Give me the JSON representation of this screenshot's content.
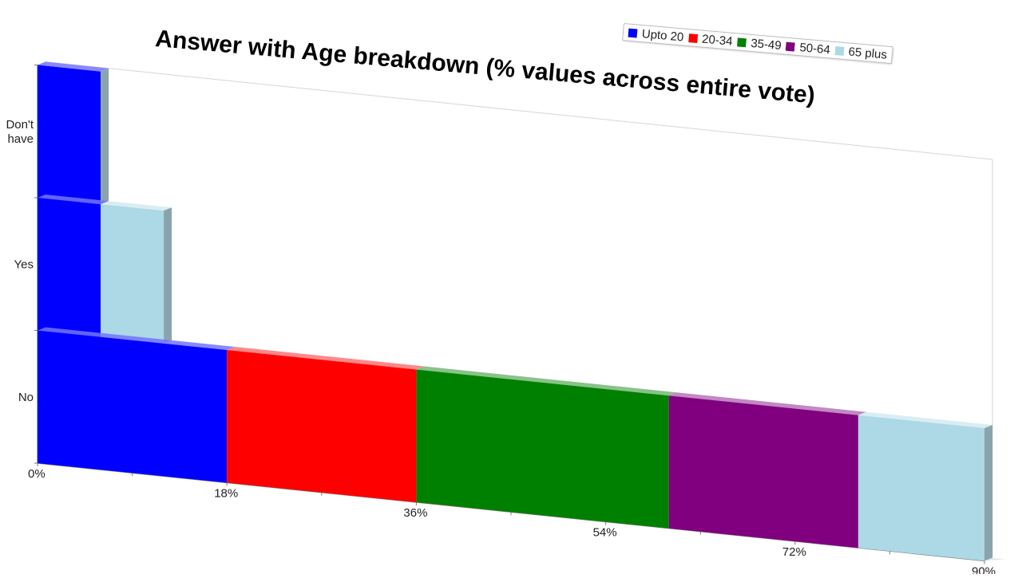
{
  "chart_data": {
    "type": "bar",
    "orientation": "horizontal",
    "stacked": true,
    "title": "Answer with Age breakdown (% values across entire vote)",
    "categories": [
      "Don't have",
      "Yes",
      "No"
    ],
    "category_lines": [
      [
        "Don't",
        "have"
      ],
      [
        "Yes"
      ],
      [
        "No"
      ]
    ],
    "series": [
      {
        "name": "Upto 20",
        "color": "#0000ff",
        "values": [
          6,
          6,
          18
        ]
      },
      {
        "name": "20-34",
        "color": "#ff0000",
        "values": [
          0,
          0,
          18
        ]
      },
      {
        "name": "35-49",
        "color": "#008000",
        "values": [
          0,
          0,
          24
        ]
      },
      {
        "name": "50-64",
        "color": "#800080",
        "values": [
          0,
          0,
          18
        ]
      },
      {
        "name": "65 plus",
        "color": "#add8e6",
        "values": [
          0,
          6,
          12
        ]
      }
    ],
    "xlim": [
      0,
      90
    ],
    "xticks": [
      0,
      18,
      36,
      54,
      72,
      90
    ],
    "xtick_labels": [
      "0%",
      "18%",
      "36%",
      "54%",
      "72%",
      "90%"
    ],
    "grid": false,
    "legend_position": "top-right"
  }
}
